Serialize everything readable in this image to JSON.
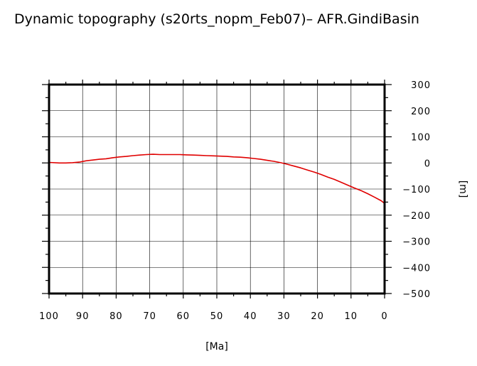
{
  "chart_data": {
    "type": "line",
    "title": "Dynamic topography (s20rts_nopm_Feb07)– AFR.GindiBasin",
    "xlabel": "[Ma]",
    "ylabel": "[m]",
    "xlim": [
      100,
      0
    ],
    "ylim": [
      -500,
      300
    ],
    "x_ticks": [
      100,
      90,
      80,
      70,
      60,
      50,
      40,
      30,
      20,
      10,
      0
    ],
    "y_ticks": [
      300,
      200,
      100,
      0,
      -100,
      -200,
      -300,
      -400,
      -500
    ],
    "x_tick_labels": [
      "100",
      "90",
      "80",
      "70",
      "60",
      "50",
      "40",
      "30",
      "20",
      "10",
      "0"
    ],
    "y_tick_labels": [
      "300",
      "200",
      "100",
      "0",
      "−100",
      "−200",
      "−300",
      "−400",
      "−500"
    ],
    "y_axis_side": "right",
    "grid": true,
    "series": [
      {
        "color": "#e00000",
        "x": [
          100,
          97,
          95,
          93,
          91,
          89,
          87,
          85,
          83,
          81,
          79,
          77,
          75,
          73,
          71,
          69,
          67,
          65,
          63,
          61,
          59,
          57,
          55,
          53,
          51,
          49,
          47,
          45,
          43,
          41,
          39,
          37,
          35,
          33,
          31,
          29,
          27,
          25,
          23,
          21,
          19,
          17,
          15,
          13,
          11,
          9,
          7,
          5,
          3,
          1,
          0
        ],
        "y": [
          2,
          0,
          0,
          1,
          3,
          8,
          11,
          14,
          16,
          20,
          23,
          25,
          28,
          30,
          32,
          33,
          32,
          32,
          32,
          32,
          31,
          30,
          29,
          28,
          27,
          26,
          25,
          23,
          22,
          20,
          17,
          14,
          10,
          6,
          1,
          -5,
          -12,
          -19,
          -27,
          -35,
          -44,
          -54,
          -63,
          -74,
          -85,
          -96,
          -106,
          -118,
          -131,
          -145,
          -155
        ]
      }
    ]
  }
}
